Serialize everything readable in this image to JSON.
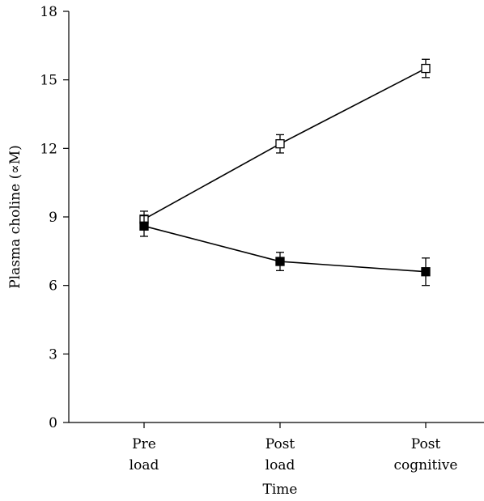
{
  "chart_data": {
    "type": "line",
    "title": "",
    "xlabel": "Time",
    "ylabel": "Plasma choline (∝M)",
    "ylim": [
      0,
      18
    ],
    "yticks": [
      "0",
      "3",
      "6",
      "9",
      "12",
      "15",
      "18"
    ],
    "categories": [
      [
        "Pre",
        "load"
      ],
      [
        "Post",
        "load"
      ],
      [
        "Post",
        "cognitive"
      ]
    ],
    "grid": false,
    "series": [
      {
        "marker": "open-square",
        "color": "#000000",
        "values": [
          8.9,
          12.2,
          15.5
        ],
        "error": [
          0.35,
          0.4,
          0.4
        ]
      },
      {
        "marker": "filled-square",
        "color": "#000000",
        "values": [
          8.6,
          7.05,
          6.6
        ],
        "error": [
          0.45,
          0.4,
          0.6
        ]
      }
    ]
  }
}
